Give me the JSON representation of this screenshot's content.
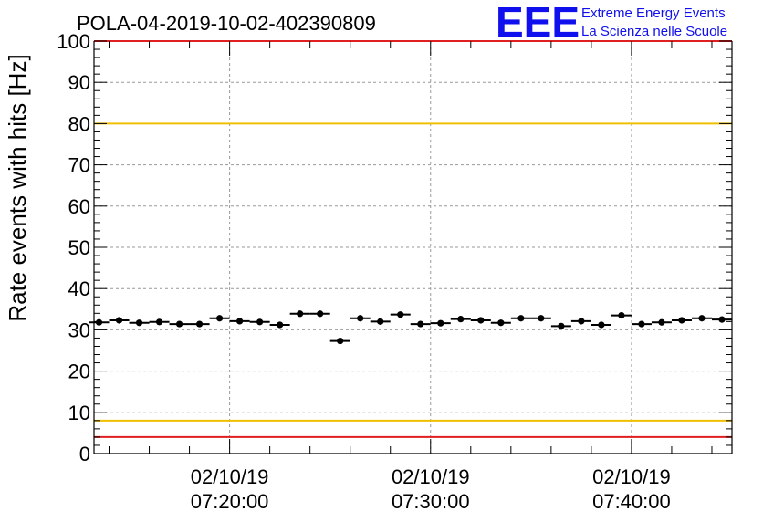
{
  "title": "POLA-04-2019-10-02-402390809",
  "logo": {
    "letters": "EEE",
    "line1": "Extreme Energy Events",
    "line2": "La Scienza nelle Scuole",
    "color": "#1010ee"
  },
  "chart_data": {
    "type": "scatter",
    "title": "POLA-04-2019-10-02-402390809",
    "xlabel": "",
    "ylabel": "Rate events with hits [Hz]",
    "ylim": [
      0,
      100
    ],
    "xlim_minutes_after_07_00": [
      13.25,
      45.0
    ],
    "y_ticks": [
      "0",
      "10",
      "20",
      "30",
      "40",
      "50",
      "60",
      "70",
      "80",
      "90",
      "100"
    ],
    "x_ticks": [
      {
        "date": "02/10/19",
        "time": "07:20:00"
      },
      {
        "date": "02/10/19",
        "time": "07:30:00"
      },
      {
        "date": "02/10/19",
        "time": "07:40:00"
      }
    ],
    "grid": true,
    "reference_lines": [
      {
        "y": 100,
        "color": "#e02020"
      },
      {
        "y": 80,
        "color": "#f0c000"
      },
      {
        "y": 8,
        "color": "#f0c000"
      },
      {
        "y": 4,
        "color": "#e02020"
      }
    ],
    "point_color": "#000000",
    "series": [
      {
        "x": [
          "07:13:30",
          "07:14:30",
          "07:15:30",
          "07:16:30",
          "07:17:30",
          "07:18:30",
          "07:19:30",
          "07:20:30",
          "07:21:30",
          "07:22:30",
          "07:23:30",
          "07:24:30",
          "07:25:30",
          "07:26:30",
          "07:27:30",
          "07:28:30",
          "07:29:30",
          "07:30:30",
          "07:31:30",
          "07:32:30",
          "07:33:30",
          "07:34:30",
          "07:35:30",
          "07:36:30",
          "07:37:30",
          "07:38:30",
          "07:39:30",
          "07:40:30",
          "07:41:30",
          "07:42:30",
          "07:43:30",
          "07:44:30"
        ],
        "values": [
          31.8,
          32.3,
          31.7,
          31.9,
          31.4,
          31.4,
          32.8,
          32.1,
          31.9,
          31.2,
          33.9,
          33.9,
          27.3,
          32.8,
          32.0,
          33.7,
          31.4,
          31.6,
          32.6,
          32.3,
          31.7,
          32.8,
          32.8,
          30.9,
          32.1,
          31.2,
          33.5,
          31.4,
          31.8,
          32.3,
          32.8,
          32.5
        ],
        "xerr_minutes": 0.5
      }
    ]
  }
}
